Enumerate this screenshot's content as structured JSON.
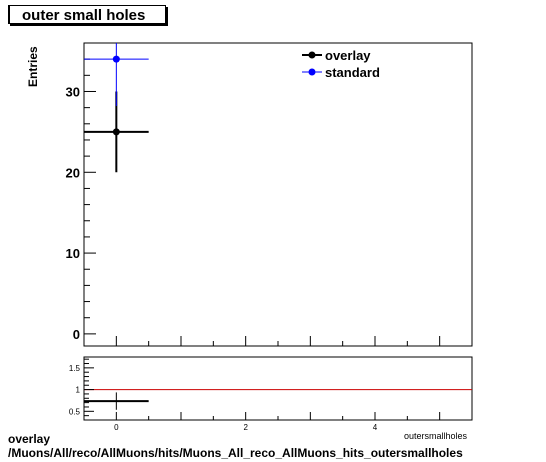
{
  "title": "outer small holes",
  "footer": {
    "line1": "overlay",
    "line2": "/Muons/All/reco/AllMuons/hits/Muons_All_reco_AllMuons_hits_outersmallholes"
  },
  "colors": {
    "overlay": "#000000",
    "standard": "#0000ff",
    "ratio_line": "#cc0000"
  },
  "chart_data": [
    {
      "type": "scatter",
      "name": "main",
      "ylabel": "Entries",
      "xlabel": "outersmallholes",
      "xlim": [
        -0.5,
        5.5
      ],
      "ylim": [
        -1.5,
        36
      ],
      "yticks": [
        0,
        10,
        20,
        30
      ],
      "legend": {
        "placement": "top-right",
        "entries": [
          "overlay",
          "standard"
        ]
      },
      "series": [
        {
          "name": "overlay",
          "x": [
            0
          ],
          "y": [
            25
          ],
          "xerr": [
            0.5
          ],
          "yerr": [
            5
          ]
        },
        {
          "name": "standard",
          "x": [
            0
          ],
          "y": [
            34
          ],
          "xerr": [
            0.5
          ],
          "yerr": [
            5.8
          ]
        }
      ]
    },
    {
      "type": "scatter",
      "name": "ratio",
      "xlim": [
        -0.5,
        5.5
      ],
      "ylim": [
        0.3,
        1.75
      ],
      "yticks": [
        0.5,
        1,
        1.5
      ],
      "xticks": [
        0,
        2,
        4
      ],
      "reference_line": 1,
      "series": [
        {
          "name": "overlay/standard",
          "x": [
            0
          ],
          "y": [
            0.735
          ],
          "xerr": [
            0.5
          ],
          "yerr": [
            0.2
          ]
        }
      ]
    }
  ]
}
